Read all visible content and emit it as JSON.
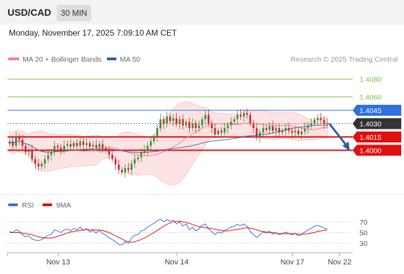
{
  "header": {
    "pair": "USD/CAD",
    "interval": "30 MIN",
    "datetime": "Monday, November 17, 2025 7:09:10 AM CET"
  },
  "main_legend": {
    "ma20": {
      "label": "MA 20 + Bollinger Bands",
      "color": "#f08080"
    },
    "ma50": {
      "label": "MA 50",
      "color": "#2f5b9a"
    },
    "credit": "Research © 2025 Trading Central"
  },
  "rsi_legend": {
    "rsi": {
      "label": "RSI",
      "color": "#3b6fd4"
    },
    "ma9": {
      "label": "9MA",
      "color": "#e01010"
    }
  },
  "chart_data": [
    {
      "type": "candlestick",
      "ylim": [
        1.3958,
        1.4095
      ],
      "x_ticks": [
        "Nov 13",
        "Nov 14",
        "Nov 17",
        "Nov 22"
      ],
      "price_levels": [
        {
          "label": "1.4080",
          "value": 1.408,
          "style": "resistance-light",
          "color": "#7cc14a"
        },
        {
          "label": "1.4060",
          "value": 1.406,
          "style": "resistance-light",
          "color": "#7cc14a"
        },
        {
          "label": "1.4045",
          "value": 1.4045,
          "style": "resistance",
          "color": "#2f6fe0"
        },
        {
          "label": "1.4030",
          "value": 1.403,
          "style": "current",
          "color": "#333333"
        },
        {
          "label": "1.4015",
          "value": 1.4015,
          "style": "support",
          "color": "#e01010"
        },
        {
          "label": "1.4000",
          "value": 1.4,
          "style": "support",
          "color": "#e01010"
        }
      ],
      "bias_arrow": {
        "from": 1.403,
        "to": 1.3999,
        "color": "#2a5ea8"
      },
      "close_series": [
        1.401,
        1.4005,
        1.4015,
        1.4012,
        1.4005,
        1.3998,
        1.4,
        1.399,
        1.3985,
        1.3982,
        1.3985,
        1.399,
        1.3995,
        1.3998,
        1.4005,
        1.4003,
        1.4,
        1.4005,
        1.4007,
        1.4004,
        1.4008,
        1.4005,
        1.401,
        1.4006,
        1.4008,
        1.4004,
        1.4006,
        1.4003,
        1.4007,
        1.4002,
        1.4,
        1.3995,
        1.399,
        1.3984,
        1.3978,
        1.3975,
        1.398,
        1.3978,
        1.3985,
        1.399,
        1.3992,
        1.3998,
        1.4,
        1.4005,
        1.401,
        1.4015,
        1.4025,
        1.4035,
        1.403,
        1.4038,
        1.4033,
        1.4036,
        1.403,
        1.4035,
        1.4028,
        1.4032,
        1.4025,
        1.403,
        1.4025,
        1.4028,
        1.4035,
        1.404,
        1.403,
        1.4025,
        1.4018,
        1.4022,
        1.402,
        1.4025,
        1.4028,
        1.4032,
        1.4035,
        1.404,
        1.4038,
        1.4042,
        1.404,
        1.403,
        1.4025,
        1.4015,
        1.402,
        1.4025,
        1.4023,
        1.4027,
        1.4022,
        1.4025,
        1.402,
        1.4022,
        1.4025,
        1.4022,
        1.402,
        1.4022,
        1.4018,
        1.4021,
        1.4025,
        1.4028,
        1.403,
        1.4034,
        1.4036,
        1.4034,
        1.403,
        1.4029
      ]
    },
    {
      "type": "line",
      "series_names": [
        "RSI",
        "9MA"
      ],
      "ylim": [
        15,
        85
      ],
      "y_ticks": [
        "70",
        "50",
        "30"
      ],
      "y_tick_values": [
        70,
        50,
        30
      ],
      "rsi": [
        52,
        50,
        55,
        53,
        46,
        42,
        44,
        38,
        36,
        35,
        37,
        41,
        45,
        47,
        55,
        53,
        50,
        55,
        57,
        53,
        58,
        55,
        60,
        54,
        57,
        51,
        54,
        49,
        55,
        48,
        45,
        40,
        37,
        33,
        28,
        27,
        33,
        30,
        40,
        45,
        46,
        53,
        55,
        60,
        64,
        67,
        72,
        75,
        70,
        74,
        71,
        73,
        66,
        70,
        62,
        66,
        55,
        60,
        53,
        57,
        63,
        66,
        57,
        52,
        46,
        51,
        49,
        54,
        57,
        60,
        62,
        65,
        63,
        66,
        62,
        52,
        46,
        41,
        46,
        51,
        49,
        53,
        47,
        50,
        46,
        48,
        51,
        48,
        46,
        48,
        44,
        47,
        51,
        55,
        58,
        62,
        63,
        61,
        58,
        57
      ],
      "ma9": [
        50,
        50,
        50,
        50,
        49,
        48,
        47,
        46,
        44,
        42,
        41,
        40,
        40,
        40,
        41,
        43,
        45,
        47,
        49,
        51,
        52,
        53,
        54,
        55,
        56,
        55,
        55,
        55,
        54,
        54,
        52,
        50,
        47,
        44,
        41,
        38,
        35,
        33,
        32,
        33,
        35,
        37,
        40,
        43,
        47,
        50,
        54,
        58,
        62,
        65,
        68,
        70,
        71,
        71,
        70,
        69,
        67,
        65,
        63,
        61,
        60,
        59,
        58,
        58,
        56,
        55,
        54,
        53,
        53,
        54,
        55,
        56,
        57,
        58,
        59,
        58,
        57,
        55,
        53,
        52,
        51,
        50,
        50,
        49,
        48,
        48,
        48,
        48,
        48,
        48,
        47,
        47,
        47,
        48,
        49,
        50,
        52,
        53,
        54,
        55
      ]
    }
  ]
}
